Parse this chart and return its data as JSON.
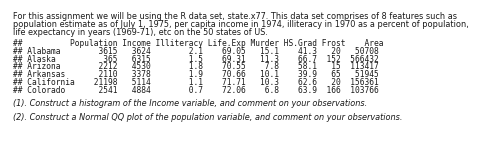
{
  "title_line1": "For this assignment we will be using the R data set, state.x77. This data set comprises of 8 features such as",
  "title_line2": "population estimate as of July 1, 1975, per capita income in 1974, illiteracy in 1970 as a percent of population,",
  "title_line3": "life expectancy in years (1969-71), etc on the 50 states of US.",
  "header": "##          Population Income Illiteracy Life.Exp Murder HS.Grad Frost    Area",
  "rows": [
    "## Alabama        3615   3624        2.1    69.05   15.1    41.3   20   50708",
    "## Alaska          365   6315        1.5    69.31   11.3    66.7  152  566432",
    "## Arizona        2212   4530        1.8    70.55    7.8    58.1   15  113417",
    "## Arkansas       2110   3378        1.9    70.66   10.1    39.9   65   51945",
    "## California    21198   5114        1.1    71.71   10.3    62.6   20  156361",
    "## Colorado       2541   4884        0.7    72.06    6.8    63.9  166  103766"
  ],
  "question1": "(1). Construct a histogram of the Income variable, and comment on your observations.",
  "question2": "(2). Construct a Normal QQ plot of the population variable, and comment on your observations.",
  "bg_color": "#ffffff",
  "text_color": "#1a1a1a",
  "title_fontsize": 5.85,
  "mono_fontsize": 5.7,
  "question_fontsize": 5.85
}
